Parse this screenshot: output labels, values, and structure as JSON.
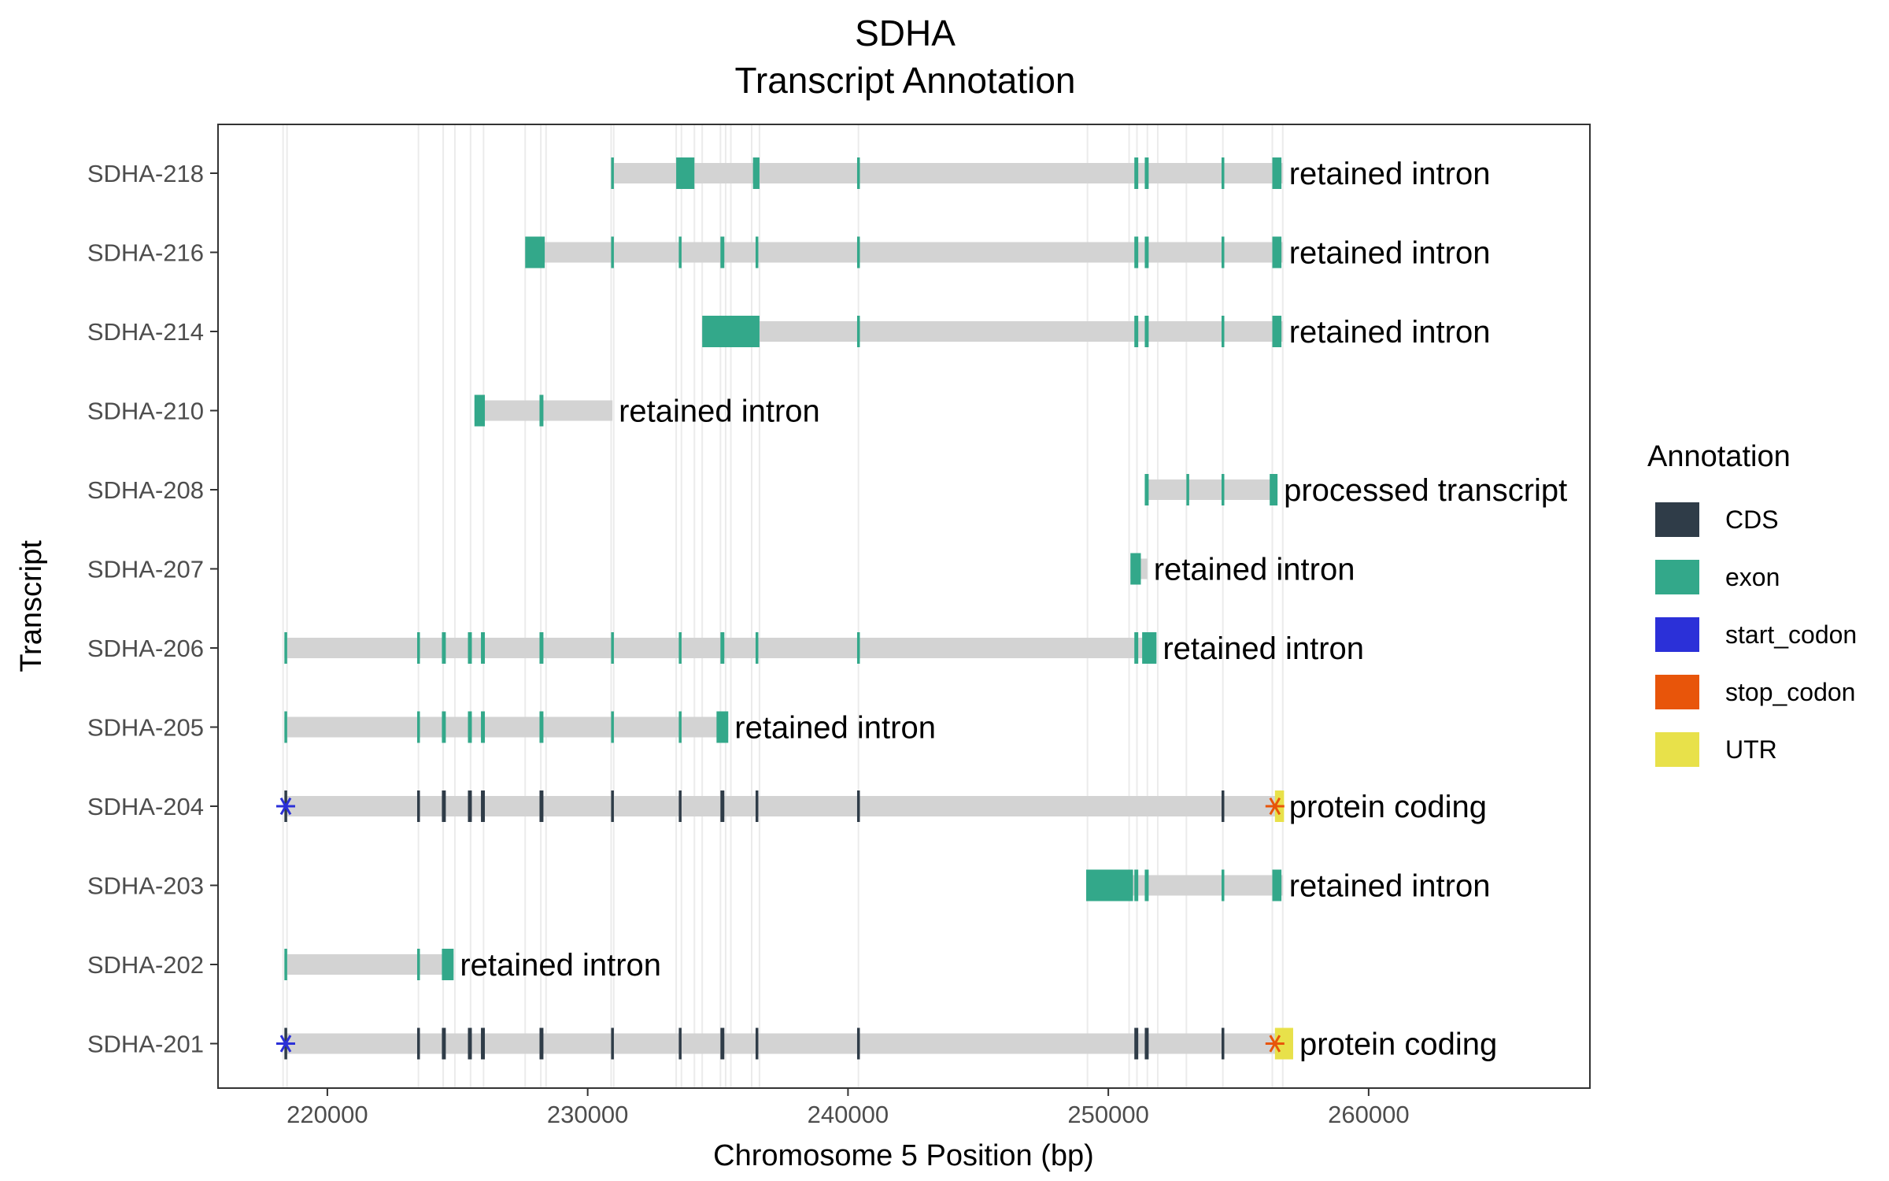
{
  "chart_data": {
    "type": "gene-track",
    "title": "SDHA",
    "subtitle": "Transcript Annotation",
    "xlabel": "Chromosome 5 Position (bp)",
    "ylabel": "Transcript",
    "xlim": [
      215800,
      268500
    ],
    "xticks": [
      220000,
      230000,
      240000,
      250000,
      260000
    ],
    "grid": true,
    "legend": {
      "title": "Annotation",
      "placement": "right",
      "entries": [
        {
          "label": "CDS",
          "color": "#2f3c48"
        },
        {
          "label": "exon",
          "color": "#33a88a"
        },
        {
          "label": "start_codon",
          "color": "#2b30d8"
        },
        {
          "label": "stop_codon",
          "color": "#e8550a"
        },
        {
          "label": "UTR",
          "color": "#e8e14a"
        }
      ]
    },
    "intron_color": "#d3d3d3",
    "vertical_guides": [
      218300,
      218450,
      223500,
      224450,
      224900,
      225500,
      226000,
      227600,
      228200,
      228400,
      230900,
      231000,
      233400,
      233600,
      234100,
      234400,
      235100,
      235300,
      235500,
      236300,
      236600,
      240400,
      249200,
      250800,
      251100,
      251500,
      251900,
      253000,
      254400,
      256300,
      256700
    ],
    "transcripts": [
      {
        "name": "SDHA-218",
        "biotype": "retained intron",
        "span": [
          230900,
          256700
        ],
        "features": [
          {
            "type": "exon",
            "start": 230900,
            "end": 231000
          },
          {
            "type": "exon",
            "start": 233400,
            "end": 234100
          },
          {
            "type": "exon",
            "start": 236350,
            "end": 236600
          },
          {
            "type": "exon",
            "start": 240350,
            "end": 240450
          },
          {
            "type": "exon",
            "start": 251000,
            "end": 251150
          },
          {
            "type": "exon",
            "start": 251400,
            "end": 251550
          },
          {
            "type": "exon",
            "start": 254350,
            "end": 254450
          },
          {
            "type": "exon",
            "start": 256300,
            "end": 256650
          }
        ]
      },
      {
        "name": "SDHA-216",
        "biotype": "retained intron",
        "span": [
          227600,
          256700
        ],
        "features": [
          {
            "type": "exon",
            "start": 227600,
            "end": 228350
          },
          {
            "type": "exon",
            "start": 230900,
            "end": 231000
          },
          {
            "type": "exon",
            "start": 233500,
            "end": 233600
          },
          {
            "type": "exon",
            "start": 235100,
            "end": 235250
          },
          {
            "type": "exon",
            "start": 236450,
            "end": 236550
          },
          {
            "type": "exon",
            "start": 240350,
            "end": 240450
          },
          {
            "type": "exon",
            "start": 251000,
            "end": 251150
          },
          {
            "type": "exon",
            "start": 251400,
            "end": 251550
          },
          {
            "type": "exon",
            "start": 254350,
            "end": 254450
          },
          {
            "type": "exon",
            "start": 256300,
            "end": 256650
          }
        ]
      },
      {
        "name": "SDHA-214",
        "biotype": "retained intron",
        "span": [
          234400,
          256700
        ],
        "features": [
          {
            "type": "exon",
            "start": 234400,
            "end": 236600
          },
          {
            "type": "exon",
            "start": 240350,
            "end": 240450
          },
          {
            "type": "exon",
            "start": 251000,
            "end": 251150
          },
          {
            "type": "exon",
            "start": 251400,
            "end": 251550
          },
          {
            "type": "exon",
            "start": 254350,
            "end": 254450
          },
          {
            "type": "exon",
            "start": 256300,
            "end": 256650
          }
        ]
      },
      {
        "name": "SDHA-210",
        "biotype": "retained intron",
        "span": [
          225650,
          230950
        ],
        "features": [
          {
            "type": "exon",
            "start": 225650,
            "end": 226050
          },
          {
            "type": "exon",
            "start": 228150,
            "end": 228300
          }
        ]
      },
      {
        "name": "SDHA-208",
        "biotype": "processed transcript",
        "span": [
          251400,
          256500
        ],
        "features": [
          {
            "type": "exon",
            "start": 251400,
            "end": 251550
          },
          {
            "type": "exon",
            "start": 253000,
            "end": 253100
          },
          {
            "type": "exon",
            "start": 254350,
            "end": 254450
          },
          {
            "type": "exon",
            "start": 256200,
            "end": 256500
          }
        ]
      },
      {
        "name": "SDHA-207",
        "biotype": "retained intron",
        "span": [
          250850,
          251500
        ],
        "features": [
          {
            "type": "exon",
            "start": 250850,
            "end": 251250
          }
        ]
      },
      {
        "name": "SDHA-206",
        "biotype": "retained intron",
        "span": [
          218350,
          251850
        ],
        "features": [
          {
            "type": "exon",
            "start": 218350,
            "end": 218450
          },
          {
            "type": "exon",
            "start": 223450,
            "end": 223550
          },
          {
            "type": "exon",
            "start": 224400,
            "end": 224550
          },
          {
            "type": "exon",
            "start": 225400,
            "end": 225550
          },
          {
            "type": "exon",
            "start": 225900,
            "end": 226050
          },
          {
            "type": "exon",
            "start": 228150,
            "end": 228300
          },
          {
            "type": "exon",
            "start": 230900,
            "end": 231000
          },
          {
            "type": "exon",
            "start": 233500,
            "end": 233600
          },
          {
            "type": "exon",
            "start": 235100,
            "end": 235250
          },
          {
            "type": "exon",
            "start": 236450,
            "end": 236550
          },
          {
            "type": "exon",
            "start": 240350,
            "end": 240450
          },
          {
            "type": "exon",
            "start": 251000,
            "end": 251150
          },
          {
            "type": "exon",
            "start": 251300,
            "end": 251850
          }
        ]
      },
      {
        "name": "SDHA-205",
        "biotype": "retained intron",
        "span": [
          218350,
          235400
        ],
        "features": [
          {
            "type": "exon",
            "start": 218350,
            "end": 218450
          },
          {
            "type": "exon",
            "start": 223450,
            "end": 223550
          },
          {
            "type": "exon",
            "start": 224400,
            "end": 224550
          },
          {
            "type": "exon",
            "start": 225400,
            "end": 225550
          },
          {
            "type": "exon",
            "start": 225900,
            "end": 226050
          },
          {
            "type": "exon",
            "start": 228150,
            "end": 228300
          },
          {
            "type": "exon",
            "start": 230900,
            "end": 231000
          },
          {
            "type": "exon",
            "start": 233500,
            "end": 233600
          },
          {
            "type": "exon",
            "start": 234950,
            "end": 235400
          }
        ]
      },
      {
        "name": "SDHA-204",
        "biotype": "protein coding",
        "span": [
          218350,
          256700
        ],
        "features": [
          {
            "type": "CDS",
            "start": 218350,
            "end": 218450
          },
          {
            "type": "CDS",
            "start": 223450,
            "end": 223550
          },
          {
            "type": "CDS",
            "start": 224400,
            "end": 224550
          },
          {
            "type": "CDS",
            "start": 225400,
            "end": 225550
          },
          {
            "type": "CDS",
            "start": 225900,
            "end": 226050
          },
          {
            "type": "CDS",
            "start": 228150,
            "end": 228300
          },
          {
            "type": "CDS",
            "start": 230900,
            "end": 231000
          },
          {
            "type": "CDS",
            "start": 233500,
            "end": 233600
          },
          {
            "type": "CDS",
            "start": 235100,
            "end": 235250
          },
          {
            "type": "CDS",
            "start": 236450,
            "end": 236550
          },
          {
            "type": "CDS",
            "start": 240350,
            "end": 240450
          },
          {
            "type": "CDS",
            "start": 254350,
            "end": 254450
          },
          {
            "type": "UTR",
            "start": 256400,
            "end": 256750
          }
        ],
        "start_codon": 218400,
        "stop_codon": 256400
      },
      {
        "name": "SDHA-203",
        "biotype": "retained intron",
        "span": [
          249150,
          256700
        ],
        "features": [
          {
            "type": "exon",
            "start": 249150,
            "end": 250950
          },
          {
            "type": "exon",
            "start": 251000,
            "end": 251150
          },
          {
            "type": "exon",
            "start": 251400,
            "end": 251550
          },
          {
            "type": "exon",
            "start": 254350,
            "end": 254450
          },
          {
            "type": "exon",
            "start": 256300,
            "end": 256650
          }
        ]
      },
      {
        "name": "SDHA-202",
        "biotype": "retained intron",
        "span": [
          218350,
          224850
        ],
        "features": [
          {
            "type": "exon",
            "start": 218350,
            "end": 218450
          },
          {
            "type": "exon",
            "start": 223450,
            "end": 223550
          },
          {
            "type": "exon",
            "start": 224400,
            "end": 224850
          }
        ]
      },
      {
        "name": "SDHA-201",
        "biotype": "protein coding",
        "span": [
          218350,
          257100
        ],
        "features": [
          {
            "type": "CDS",
            "start": 218350,
            "end": 218450
          },
          {
            "type": "CDS",
            "start": 223450,
            "end": 223550
          },
          {
            "type": "CDS",
            "start": 224400,
            "end": 224550
          },
          {
            "type": "CDS",
            "start": 225400,
            "end": 225550
          },
          {
            "type": "CDS",
            "start": 225900,
            "end": 226050
          },
          {
            "type": "CDS",
            "start": 228150,
            "end": 228300
          },
          {
            "type": "CDS",
            "start": 230900,
            "end": 231000
          },
          {
            "type": "CDS",
            "start": 233500,
            "end": 233600
          },
          {
            "type": "CDS",
            "start": 235100,
            "end": 235250
          },
          {
            "type": "CDS",
            "start": 236450,
            "end": 236550
          },
          {
            "type": "CDS",
            "start": 240350,
            "end": 240450
          },
          {
            "type": "CDS",
            "start": 251000,
            "end": 251150
          },
          {
            "type": "CDS",
            "start": 251400,
            "end": 251550
          },
          {
            "type": "CDS",
            "start": 254350,
            "end": 254450
          },
          {
            "type": "UTR",
            "start": 256400,
            "end": 257100
          }
        ],
        "start_codon": 218400,
        "stop_codon": 256400
      }
    ]
  }
}
